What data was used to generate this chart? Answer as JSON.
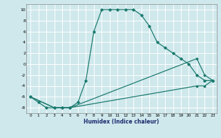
{
  "xlabel": "Humidex (Indice chaleur)",
  "background_color": "#cfe8ec",
  "grid_color": "#ffffff",
  "line_color": "#1a7a6e",
  "xlim": [
    -0.5,
    23.5
  ],
  "ylim": [
    -9,
    11
  ],
  "xticks": [
    0,
    1,
    2,
    3,
    4,
    5,
    6,
    7,
    8,
    9,
    10,
    11,
    12,
    13,
    14,
    15,
    16,
    17,
    18,
    19,
    20,
    21,
    22,
    23
  ],
  "yticks": [
    -8,
    -6,
    -4,
    -2,
    0,
    2,
    4,
    6,
    8,
    10
  ],
  "series1_x": [
    0,
    1,
    2,
    3,
    4,
    5,
    6,
    7,
    8,
    9,
    10,
    11,
    12,
    13,
    14,
    15,
    16,
    17,
    18,
    19,
    20,
    21,
    22,
    23
  ],
  "series1_y": [
    -6,
    -7,
    -8,
    -8,
    -8,
    -8,
    -7,
    -3,
    6,
    10,
    10,
    10,
    10,
    10,
    9,
    7,
    4,
    3,
    2,
    1,
    0,
    -2,
    -3,
    -3
  ],
  "series2_x": [
    0,
    3,
    4,
    5,
    21,
    22,
    23
  ],
  "series2_y": [
    -6,
    -8,
    -8,
    -8,
    1,
    -2,
    -3
  ],
  "series3_x": [
    0,
    3,
    4,
    5,
    21,
    22,
    23
  ],
  "series3_y": [
    -6,
    -8,
    -8,
    -8,
    -4,
    -4,
    -3
  ]
}
